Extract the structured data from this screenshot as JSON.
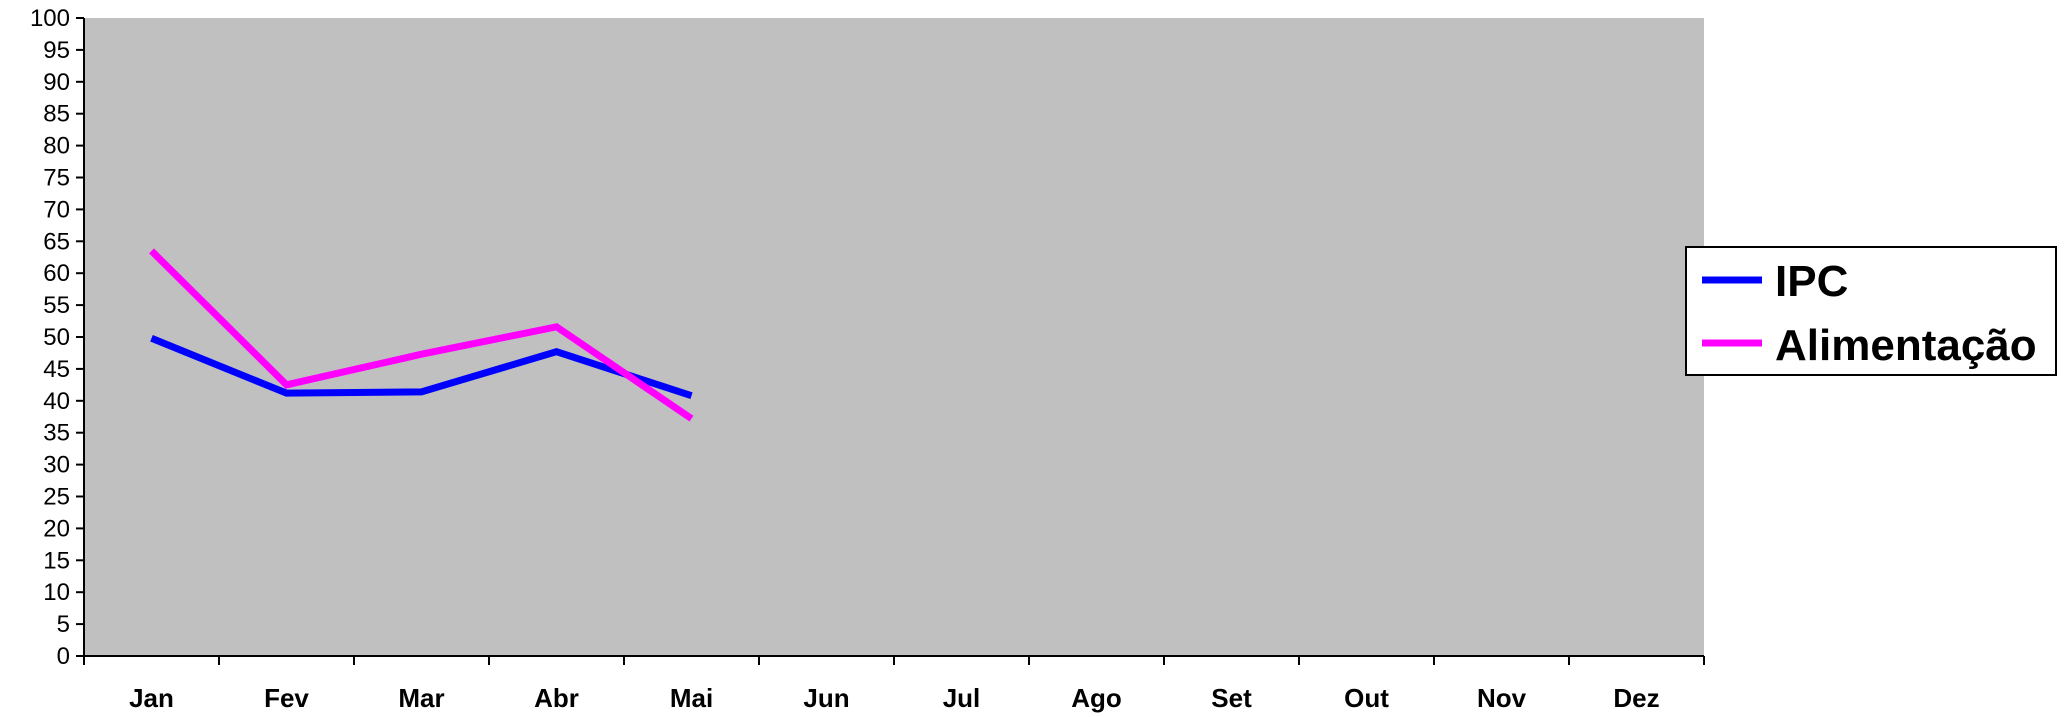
{
  "chart_data": {
    "type": "line",
    "categories": [
      "Jan",
      "Fev",
      "Mar",
      "Abr",
      "Mai",
      "Jun",
      "Jul",
      "Ago",
      "Set",
      "Out",
      "Nov",
      "Dez"
    ],
    "ylim": [
      0,
      100
    ],
    "ytick_step": 5,
    "grid": false,
    "plot_background": "#c0c0c0",
    "legend_position": "right",
    "series": [
      {
        "name": "IPC",
        "color": "#0000ff",
        "values": [
          49.8,
          41.2,
          41.4,
          47.7,
          40.8,
          null,
          null,
          null,
          null,
          null,
          null,
          null
        ]
      },
      {
        "name": "Alimentação",
        "color": "#ff00ff",
        "values": [
          63.5,
          42.5,
          47.3,
          51.6,
          37.2,
          null,
          null,
          null,
          null,
          null,
          null,
          null
        ]
      }
    ]
  }
}
